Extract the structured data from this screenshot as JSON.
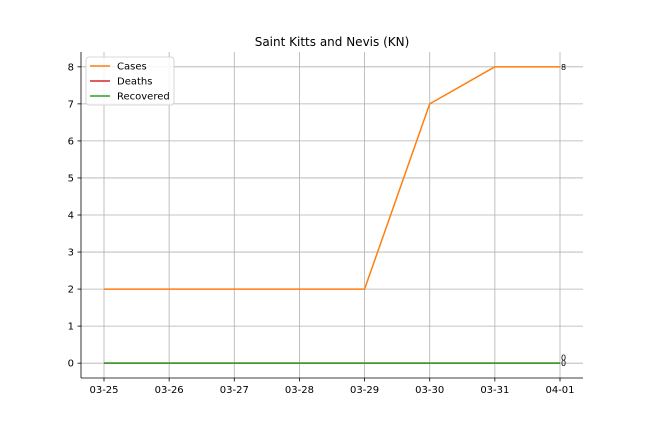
{
  "chart_data": {
    "type": "line",
    "title": "Saint Kitts and Nevis (KN)",
    "xlabel": "",
    "ylabel": "",
    "categories": [
      "03-25",
      "03-26",
      "03-27",
      "03-28",
      "03-29",
      "03-30",
      "03-31",
      "04-01"
    ],
    "ylim": [
      -0.4,
      8.4
    ],
    "yticks": [
      0,
      1,
      2,
      3,
      4,
      5,
      6,
      7,
      8
    ],
    "grid": true,
    "legend": "top-left",
    "series": [
      {
        "name": "Cases",
        "color": "#ff7f0e",
        "values": [
          2,
          2,
          2,
          2,
          2,
          7,
          8,
          8
        ],
        "end_label": "8"
      },
      {
        "name": "Deaths",
        "color": "#d62728",
        "values": [
          0,
          0,
          0,
          0,
          0,
          0,
          0,
          0
        ],
        "end_label": "0"
      },
      {
        "name": "Recovered",
        "color": "#2ca02c",
        "values": [
          0,
          0,
          0,
          0,
          0,
          0,
          0,
          0
        ],
        "end_label": "0"
      }
    ]
  }
}
